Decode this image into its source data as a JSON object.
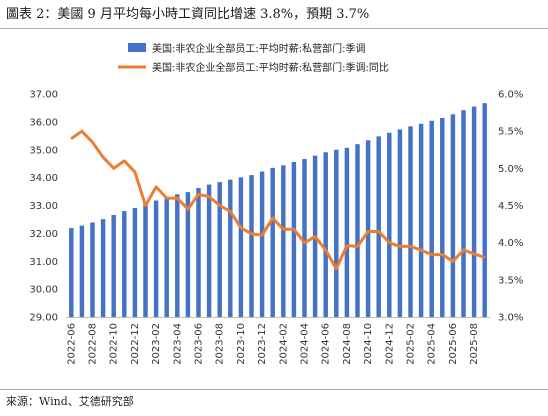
{
  "title": "圖表 2：美國 9 月平均每小時工資同比增速 3.8%，預期 3.7%",
  "source": "來源：Wind、艾德研究部",
  "chart_data": {
    "type": "bar+line",
    "left_axis": {
      "ticks": [
        "29.00",
        "30.00",
        "31.00",
        "32.00",
        "33.00",
        "34.00",
        "35.00",
        "36.00",
        "37.00"
      ],
      "ylim": [
        29,
        37
      ]
    },
    "right_axis": {
      "ticks": [
        "3.0%",
        "3.5%",
        "4.0%",
        "4.5%",
        "5.0%",
        "5.5%",
        "6.0%"
      ],
      "ylim": [
        3.0,
        6.0
      ]
    },
    "x_tick_labels": [
      "2022-06",
      "2022-08",
      "2022-10",
      "2022-12",
      "2023-02",
      "2023-04",
      "2023-06",
      "2023-08",
      "2023-10",
      "2023-12",
      "2024-02",
      "2024-04",
      "2024-06",
      "2024-08",
      "2024-10",
      "2024-12",
      "2025-02",
      "2025-04",
      "2025-06",
      "2025-08"
    ],
    "categories": [
      "2022-06",
      "2022-07",
      "2022-08",
      "2022-09",
      "2022-10",
      "2022-11",
      "2022-12",
      "2023-01",
      "2023-02",
      "2023-03",
      "2023-04",
      "2023-05",
      "2023-06",
      "2023-07",
      "2023-08",
      "2023-09",
      "2023-10",
      "2023-11",
      "2023-12",
      "2024-01",
      "2024-02",
      "2024-03",
      "2024-04",
      "2024-05",
      "2024-06",
      "2024-07",
      "2024-08",
      "2024-09",
      "2024-10",
      "2024-11",
      "2024-12",
      "2025-01",
      "2025-02",
      "2025-03",
      "2025-04",
      "2025-05",
      "2025-06",
      "2025-07",
      "2025-08",
      "2025-09"
    ],
    "series": [
      {
        "name": "美国:非农企业全部员工:平均时薪:私营部门:季调",
        "type": "bar",
        "axis": "left",
        "color": "#4472C4",
        "values": [
          32.19,
          32.28,
          32.39,
          32.51,
          32.66,
          32.8,
          32.91,
          33.07,
          33.18,
          33.26,
          33.4,
          33.48,
          33.63,
          33.75,
          33.84,
          33.93,
          34.01,
          34.09,
          34.22,
          34.35,
          34.44,
          34.56,
          34.67,
          34.79,
          34.91,
          35.0,
          35.07,
          35.2,
          35.34,
          35.48,
          35.61,
          35.73,
          35.84,
          35.93,
          36.04,
          36.14,
          36.27,
          36.42,
          36.55,
          36.67
        ]
      },
      {
        "name": "美国:非农企业全部员工:平均时薪:私营部门:季调:同比",
        "type": "line",
        "axis": "right",
        "color": "#ED7D31",
        "values": [
          5.4,
          5.5,
          5.35,
          5.15,
          5.0,
          5.1,
          4.95,
          4.5,
          4.75,
          4.6,
          4.6,
          4.45,
          4.65,
          4.62,
          4.5,
          4.42,
          4.2,
          4.12,
          4.1,
          4.33,
          4.18,
          4.18,
          4.0,
          4.08,
          3.9,
          3.65,
          3.96,
          3.95,
          4.15,
          4.15,
          4.0,
          3.95,
          3.95,
          3.9,
          3.84,
          3.84,
          3.75,
          3.9,
          3.85,
          3.8
        ]
      }
    ]
  }
}
